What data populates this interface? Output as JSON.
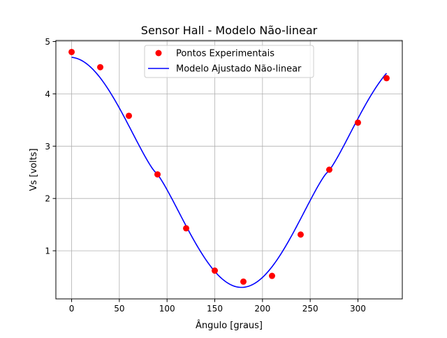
{
  "chart_data": {
    "type": "scatter",
    "title": "Sensor Hall - Modelo Não-linear",
    "xlabel": "Ângulo [graus]",
    "ylabel": "Vs [volts]",
    "xlim": [
      -16.5,
      346.5
    ],
    "ylim": [
      0.08,
      5.02
    ],
    "grid": true,
    "legend_position": "top-center",
    "x_ticks": [
      0,
      50,
      100,
      150,
      200,
      250,
      300
    ],
    "y_ticks": [
      1,
      2,
      3,
      4,
      5
    ],
    "x_tick_labels": [
      "0",
      "50",
      "100",
      "150",
      "200",
      "250",
      "300"
    ],
    "y_tick_labels": [
      "1",
      "2",
      "3",
      "4",
      "5"
    ],
    "series": [
      {
        "name": "Pontos Experimentais",
        "kind": "scatter",
        "color": "#ff0000",
        "x": [
          0,
          30,
          60,
          90,
          120,
          150,
          180,
          210,
          240,
          270,
          300,
          330
        ],
        "y": [
          4.8,
          4.51,
          3.58,
          2.46,
          1.43,
          0.62,
          0.41,
          0.52,
          1.31,
          2.55,
          3.45,
          4.3
        ]
      },
      {
        "name": "Modelo Ajustado Não-linear",
        "kind": "line",
        "color": "#0000ff",
        "x_start": 0,
        "x_end": 330,
        "model": {
          "offset": 2.5,
          "amplitude": 2.2,
          "exponent": 1.2,
          "x_at_minimum": 178
        }
      }
    ]
  }
}
